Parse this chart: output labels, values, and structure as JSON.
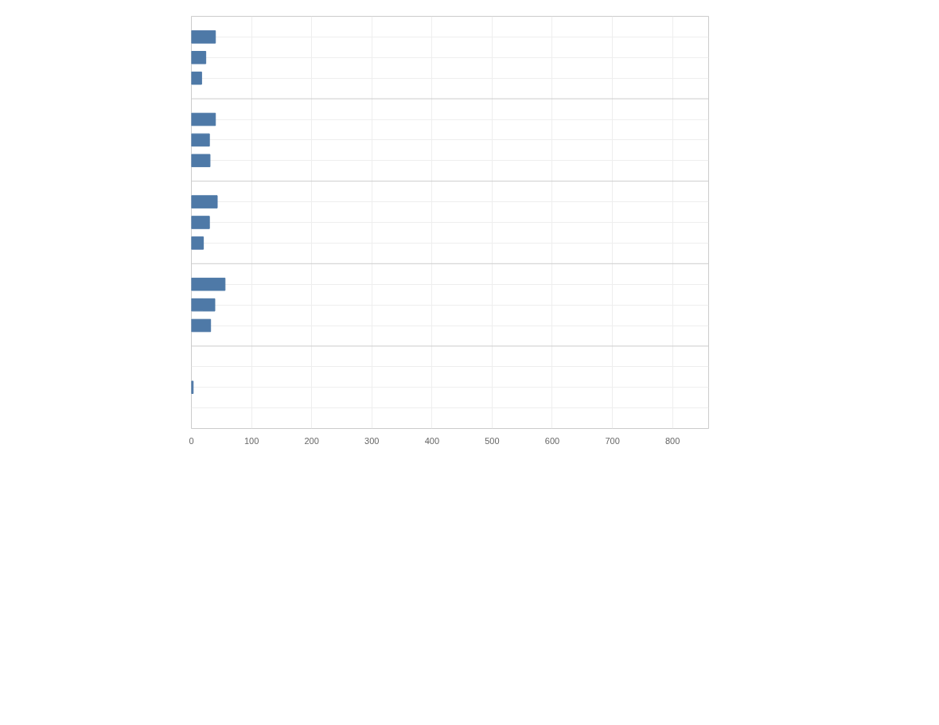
{
  "chart_data": {
    "type": "bar",
    "orientation": "horizontal",
    "categories": [
      null,
      null,
      null,
      null,
      null,
      null,
      null,
      null,
      null,
      null,
      null,
      null,
      null,
      null,
      null
    ],
    "series": [
      {
        "color": "#4e79a7",
        "values": [
          40,
          24,
          17,
          40,
          30,
          31,
          43,
          30,
          20,
          56,
          39,
          32,
          null,
          3,
          null
        ]
      }
    ],
    "xlim": [
      0,
      860
    ],
    "xticks": [
      0,
      100,
      200,
      300,
      400,
      500,
      600,
      700,
      800
    ],
    "grid": true
  }
}
